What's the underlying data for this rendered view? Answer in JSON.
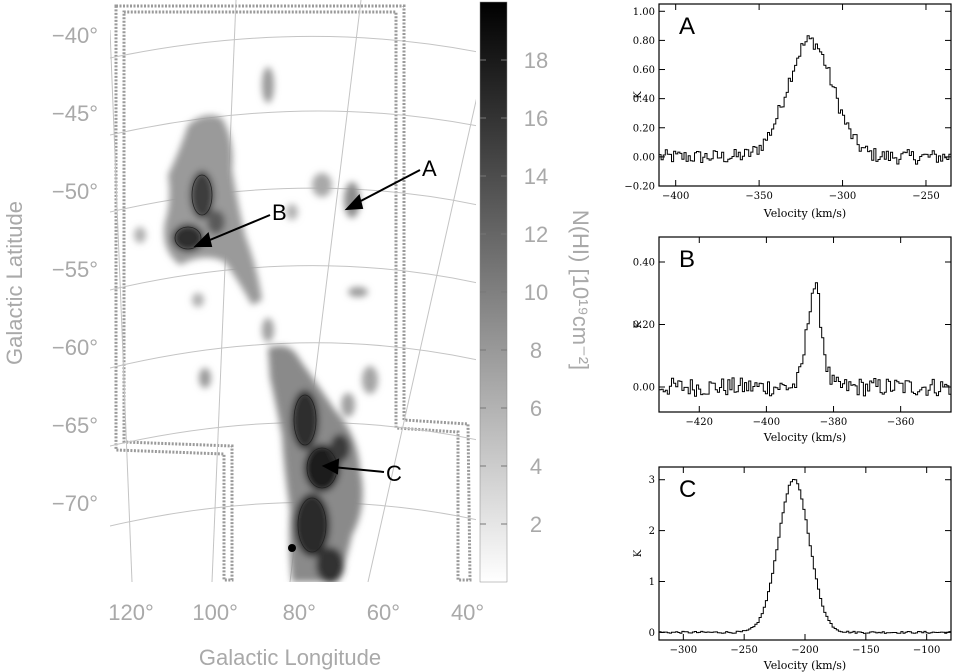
{
  "chart_data": [
    {
      "type": "heatmap",
      "xlabel": "Galactic Longitude",
      "ylabel": "Galactic Latitude",
      "x_ticks": [
        120,
        100,
        80,
        60,
        40
      ],
      "x_tick_labels": [
        "120°",
        "100°",
        "80°",
        "60°",
        "40°"
      ],
      "y_ticks": [
        -40,
        -45,
        -50,
        -55,
        -60,
        -65,
        -70
      ],
      "y_tick_labels": [
        "−40°",
        "−45°",
        "−50°",
        "−55°",
        "−60°",
        "−65°",
        "−70°"
      ],
      "colorbar": {
        "label": "N(HI) [10¹⁹cm⁻²]",
        "range": [
          0,
          20
        ],
        "ticks": [
          2,
          4,
          6,
          8,
          10,
          12,
          14,
          16,
          18
        ],
        "tick_labels": [
          "2",
          "4",
          "6",
          "8",
          "10",
          "12",
          "14",
          "16",
          "18"
        ]
      },
      "annotations": [
        {
          "label": "A",
          "l": 63,
          "b": -51.2
        },
        {
          "label": "B",
          "l": 99,
          "b": -53.5
        },
        {
          "label": "C",
          "l": 69,
          "b": -67.2
        }
      ]
    },
    {
      "type": "line",
      "panel_label": "A",
      "xlabel": "Velocity (km/s)",
      "ylabel": "K",
      "xlim": [
        -410,
        -235
      ],
      "ylim": [
        -0.2,
        1.05
      ],
      "x_ticks": [
        -400,
        -350,
        -300,
        -250
      ],
      "x_tick_labels": [
        "−400",
        "−350",
        "−300",
        "−250"
      ],
      "y_ticks": [
        -0.2,
        0,
        0.2,
        0.4,
        0.6,
        0.8,
        1.0
      ],
      "y_tick_labels": [
        "−0.20",
        "0.00",
        "0.20",
        "0.40",
        "0.60",
        "0.80",
        "1.00"
      ],
      "line": {
        "peak_x": -320,
        "peak_y": 0.8,
        "fwhm": 32,
        "noise": 0.05
      }
    },
    {
      "type": "line",
      "panel_label": "B",
      "xlabel": "Velocity (km/s)",
      "ylabel": "K",
      "xlim": [
        -432,
        -345
      ],
      "ylim": [
        -0.08,
        0.48
      ],
      "x_ticks": [
        -420,
        -400,
        -380,
        -360
      ],
      "x_tick_labels": [
        "−420",
        "−400",
        "−380",
        "−360"
      ],
      "y_ticks": [
        0,
        0.2,
        0.4
      ],
      "y_tick_labels": [
        "0.00",
        "0.20",
        "0.40"
      ],
      "line": {
        "peak_x": -386,
        "peak_y": 0.32,
        "fwhm": 5,
        "noise": 0.03
      }
    },
    {
      "type": "line",
      "panel_label": "C",
      "xlabel": "Velocity (km/s)",
      "ylabel": "K",
      "xlim": [
        -320,
        -80
      ],
      "ylim": [
        -0.15,
        3.25
      ],
      "x_ticks": [
        -300,
        -250,
        -200,
        -150,
        -100
      ],
      "x_tick_labels": [
        "−300",
        "−250",
        "−200",
        "−150",
        "−100"
      ],
      "y_ticks": [
        0,
        1,
        2,
        3
      ],
      "y_tick_labels": [
        "0",
        "1",
        "2",
        "3"
      ],
      "line": {
        "peak_x": -210,
        "peak_y": 3.0,
        "fwhm": 30,
        "noise": 0.02
      }
    }
  ]
}
